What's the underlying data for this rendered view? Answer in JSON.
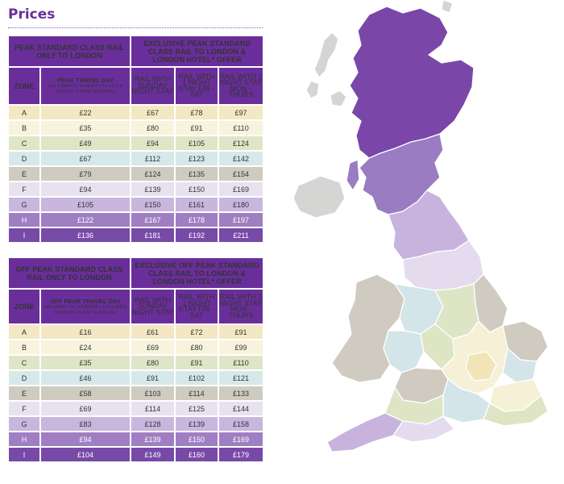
{
  "title": "Prices",
  "peak": {
    "head_left": "PEAK STANDARD CLASS RAIL ONLY TO LONDON",
    "head_right": "EXCLUSIVE PEAK STANDARD CLASS RAIL TO LONDON & LONDON HOTEL* OFFER",
    "zone_label": "ZONE",
    "day_title": "PEAK TRAVEL DAY",
    "day_sub": "ALL FRIDAYS, SUNDAYS IN JULY & AUGUST & BANK HOLIDAYS",
    "col1": "RAIL WITH SUNDAY NIGHT STAY",
    "col2": "RAIL WITH 1 NIGHT STAY FRI - SAT",
    "col3": "RAIL WITH 1 NIGHT STAY MON - THURS",
    "rows": [
      {
        "zone": "A",
        "rail": "£22",
        "c1": "£67",
        "c2": "£78",
        "c3": "£97"
      },
      {
        "zone": "B",
        "rail": "£35",
        "c1": "£80",
        "c2": "£91",
        "c3": "£110"
      },
      {
        "zone": "C",
        "rail": "£49",
        "c1": "£94",
        "c2": "£105",
        "c3": "£124"
      },
      {
        "zone": "D",
        "rail": "£67",
        "c1": "£112",
        "c2": "£123",
        "c3": "£142"
      },
      {
        "zone": "E",
        "rail": "£79",
        "c1": "£124",
        "c2": "£135",
        "c3": "£154"
      },
      {
        "zone": "F",
        "rail": "£94",
        "c1": "£139",
        "c2": "£150",
        "c3": "£169"
      },
      {
        "zone": "G",
        "rail": "£105",
        "c1": "£150",
        "c2": "£161",
        "c3": "£180"
      },
      {
        "zone": "H",
        "rail": "£122",
        "c1": "£167",
        "c2": "£178",
        "c3": "£197"
      },
      {
        "zone": "I",
        "rail": "£136",
        "c1": "£181",
        "c2": "£192",
        "c3": "£211"
      }
    ]
  },
  "offpeak": {
    "head_left": "OFF PEAK STANDARD CLASS RAIL ONLY TO LONDON",
    "head_right": "EXCLUSIVE OFF PEAK STANDARD CLASS RAIL TO LONDON & LONDON HOTEL* OFFER",
    "zone_label": "ZONE",
    "day_title": "OFF PEAK TRAVEL DAY",
    "day_sub": "SATURDAY TO THURSDAY, EXCLUDES SUNDAYS IN JULY & AUGUST",
    "col1": "RAIL WITH SUNDAY NIGHT STAY",
    "col2": "RAIL WITH 1 NIGHT STAY FRI - SAT",
    "col3": "RAIL WITH 1 NIGHT STAY MON - THURS",
    "rows": [
      {
        "zone": "A",
        "rail": "£16",
        "c1": "£61",
        "c2": "£72",
        "c3": "£91"
      },
      {
        "zone": "B",
        "rail": "£24",
        "c1": "£69",
        "c2": "£80",
        "c3": "£99"
      },
      {
        "zone": "C",
        "rail": "£35",
        "c1": "£80",
        "c2": "£91",
        "c3": "£110"
      },
      {
        "zone": "D",
        "rail": "£46",
        "c1": "£91",
        "c2": "£102",
        "c3": "£121"
      },
      {
        "zone": "E",
        "rail": "£58",
        "c1": "£103",
        "c2": "£114",
        "c3": "£133"
      },
      {
        "zone": "F",
        "rail": "£69",
        "c1": "£114",
        "c2": "£125",
        "c3": "£144"
      },
      {
        "zone": "G",
        "rail": "£83",
        "c1": "£128",
        "c2": "£139",
        "c3": "£158"
      },
      {
        "zone": "H",
        "rail": "£94",
        "c1": "£139",
        "c2": "£150",
        "c3": "£169"
      },
      {
        "zone": "I",
        "rail": "£104",
        "c1": "£149",
        "c2": "£160",
        "c3": "£179"
      }
    ]
  },
  "colors": {
    "header_purple": "#6a2e9b",
    "zone_A": "#f3e8c3",
    "zone_B": "#f8f3dc",
    "zone_C": "#dfe6c7",
    "zone_D": "#d6e8ea",
    "zone_E": "#cfcbc0",
    "zone_F": "#e8e2f0",
    "zone_G": "#c9b6de",
    "zone_H": "#9f7fc2",
    "zone_I": "#774aa8"
  },
  "map": {
    "icon": "uk-zone-map",
    "regions": [
      {
        "zone": "I",
        "area": "northern-scotland"
      },
      {
        "zone": "H",
        "area": "southern-scotland"
      },
      {
        "zone": "G",
        "area": "northern-england"
      },
      {
        "zone": "F",
        "area": "northern-england-south"
      },
      {
        "zone": "E",
        "area": "wales-and-east"
      },
      {
        "zone": "D",
        "area": "midlands-west"
      },
      {
        "zone": "C",
        "area": "midlands"
      },
      {
        "zone": "B",
        "area": "home-counties"
      },
      {
        "zone": "A",
        "area": "greater-london"
      },
      {
        "zone": "none",
        "area": "northern-ireland-and-islands"
      }
    ]
  }
}
